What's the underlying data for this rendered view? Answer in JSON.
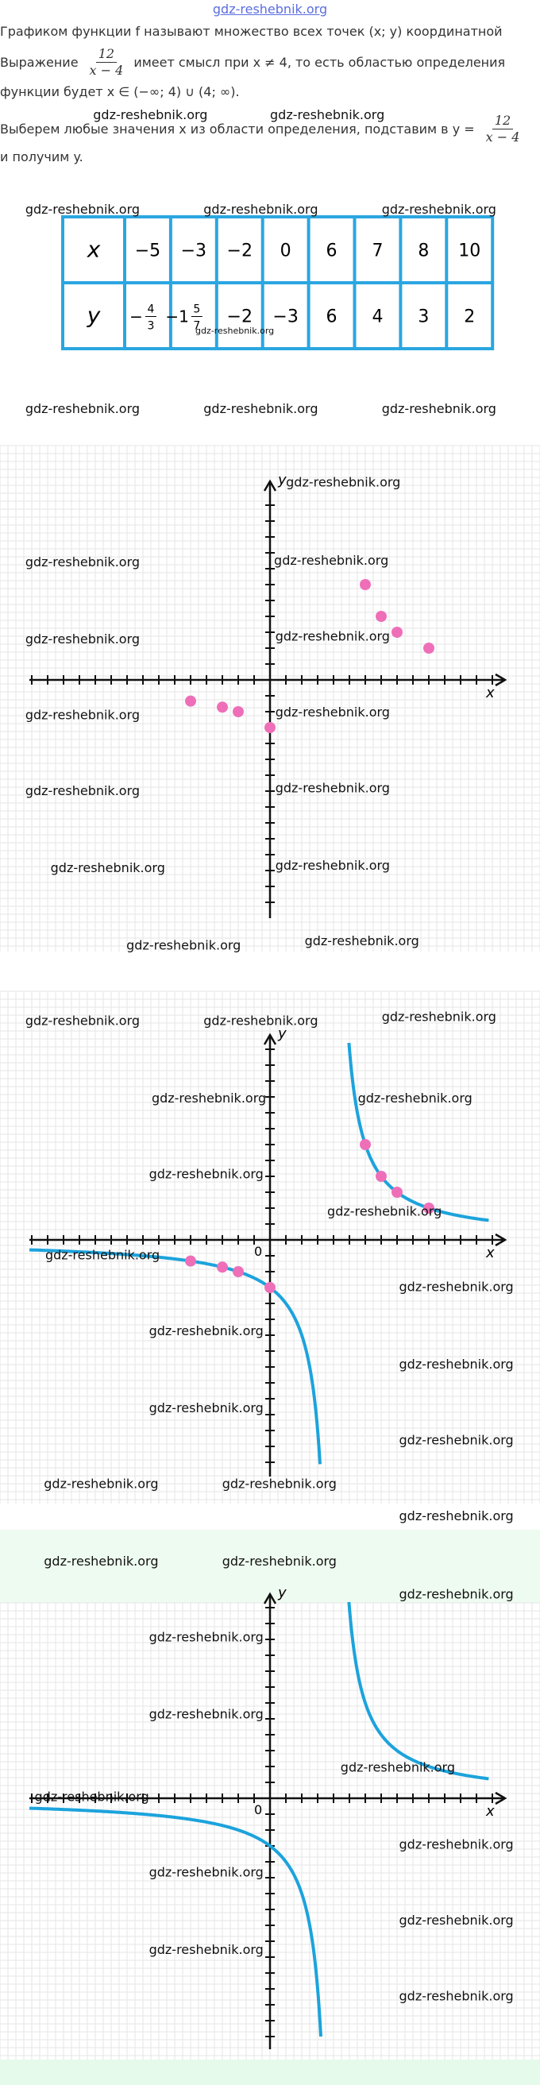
{
  "header": {
    "site": "gdz-reshebnik.org"
  },
  "watermark": "gdz-reshebnik.org",
  "text": {
    "lines": [
      [
        "Графиком функции f называют множество всех точек (x; y) координатной"
      ],
      [
        "Выражение",
        {
          "num": "12",
          "den": "x − 4"
        },
        "имеет смысл при x ≠ 4, то есть областью определения"
      ],
      [
        "функции будет x ∈ (−∞; 4) ∪ (4; ∞)."
      ],
      [
        "Выберем любые значения x из области определения, подставим в y =",
        {
          "num": "12",
          "den": "x − 4"
        }
      ],
      [
        "и получим y."
      ]
    ]
  },
  "table": {
    "rows": [
      {
        "label": "x",
        "cells": [
          "−5",
          "−3",
          "−2",
          "0",
          "6",
          "7",
          "8",
          "10"
        ]
      },
      {
        "label": "y",
        "cells": [
          {
            "whole": "−",
            "num": "4",
            "den": "3"
          },
          {
            "whole": "−1",
            "num": "5",
            "den": "7"
          },
          "−2",
          "−3",
          "6",
          "4",
          "3",
          "2"
        ]
      }
    ]
  },
  "graph_points": {
    "x": [
      -5,
      -3,
      -2,
      0,
      6,
      7,
      8,
      10
    ],
    "y": [
      -1.333,
      -1.714,
      -2,
      -3,
      6,
      4,
      3,
      2
    ]
  },
  "axes": {
    "x": "x",
    "y": "y",
    "origin": "0"
  }
}
